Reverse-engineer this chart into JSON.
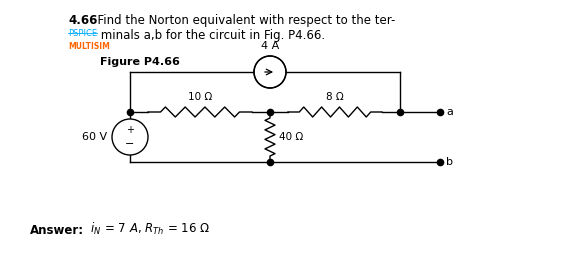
{
  "title_bold": "4.66",
  "title_text": "  Find the Norton equivalent with respect to the ter-",
  "line2_pspice": "PSPICE",
  "line2_text": " minals a,b for the circuit in Fig. P4.66.",
  "line3": "MULTISIM",
  "figure_label": "Figure P4.66",
  "bg_color": "#ffffff",
  "circuit_color": "#000000",
  "pspice_color": "#00aaff",
  "multisim_color": "#ff6600",
  "resistor_10": "10 Ω",
  "resistor_8": "8 Ω",
  "resistor_40": "40 Ω",
  "voltage_source": "60 V",
  "current_source": "4 A",
  "answer_bold": "Answer:",
  "answer_rest": " $i_N$ = 7 $A$, $R_{Th}$ = 16 Ω"
}
